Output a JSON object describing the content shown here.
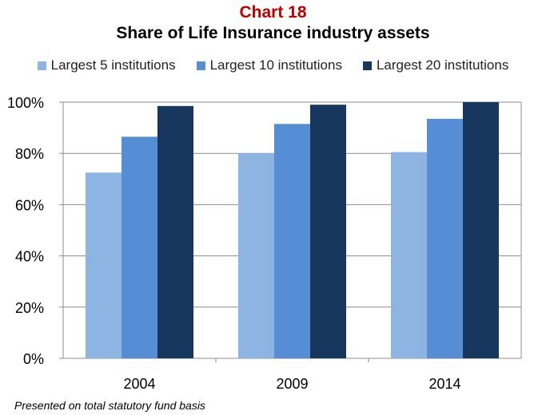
{
  "header": {
    "chart_number": "Chart 18",
    "title": "Share of Life Insurance industry assets"
  },
  "footnote": "Presented on total statutory fund basis",
  "chart_data": {
    "type": "bar",
    "title": "Share of Life Insurance industry assets",
    "categories": [
      "2004",
      "2009",
      "2014"
    ],
    "series": [
      {
        "name": "Largest 5 institutions",
        "values": [
          72.5,
          80,
          80.5
        ],
        "color": "#8eb4e3"
      },
      {
        "name": "Largest 10 institutions",
        "values": [
          86.5,
          91.5,
          93.5
        ],
        "color": "#558ed5"
      },
      {
        "name": "Largest 20 institutions",
        "values": [
          98.5,
          99,
          100
        ],
        "color": "#17375e"
      }
    ],
    "ylim": [
      0,
      100
    ],
    "yticks": [
      "0%",
      "20%",
      "40%",
      "60%",
      "80%",
      "100%"
    ],
    "ytick_values": [
      0,
      20,
      40,
      60,
      80,
      100
    ],
    "grid": true,
    "legend_position": "top",
    "xlabel": "",
    "ylabel": ""
  }
}
